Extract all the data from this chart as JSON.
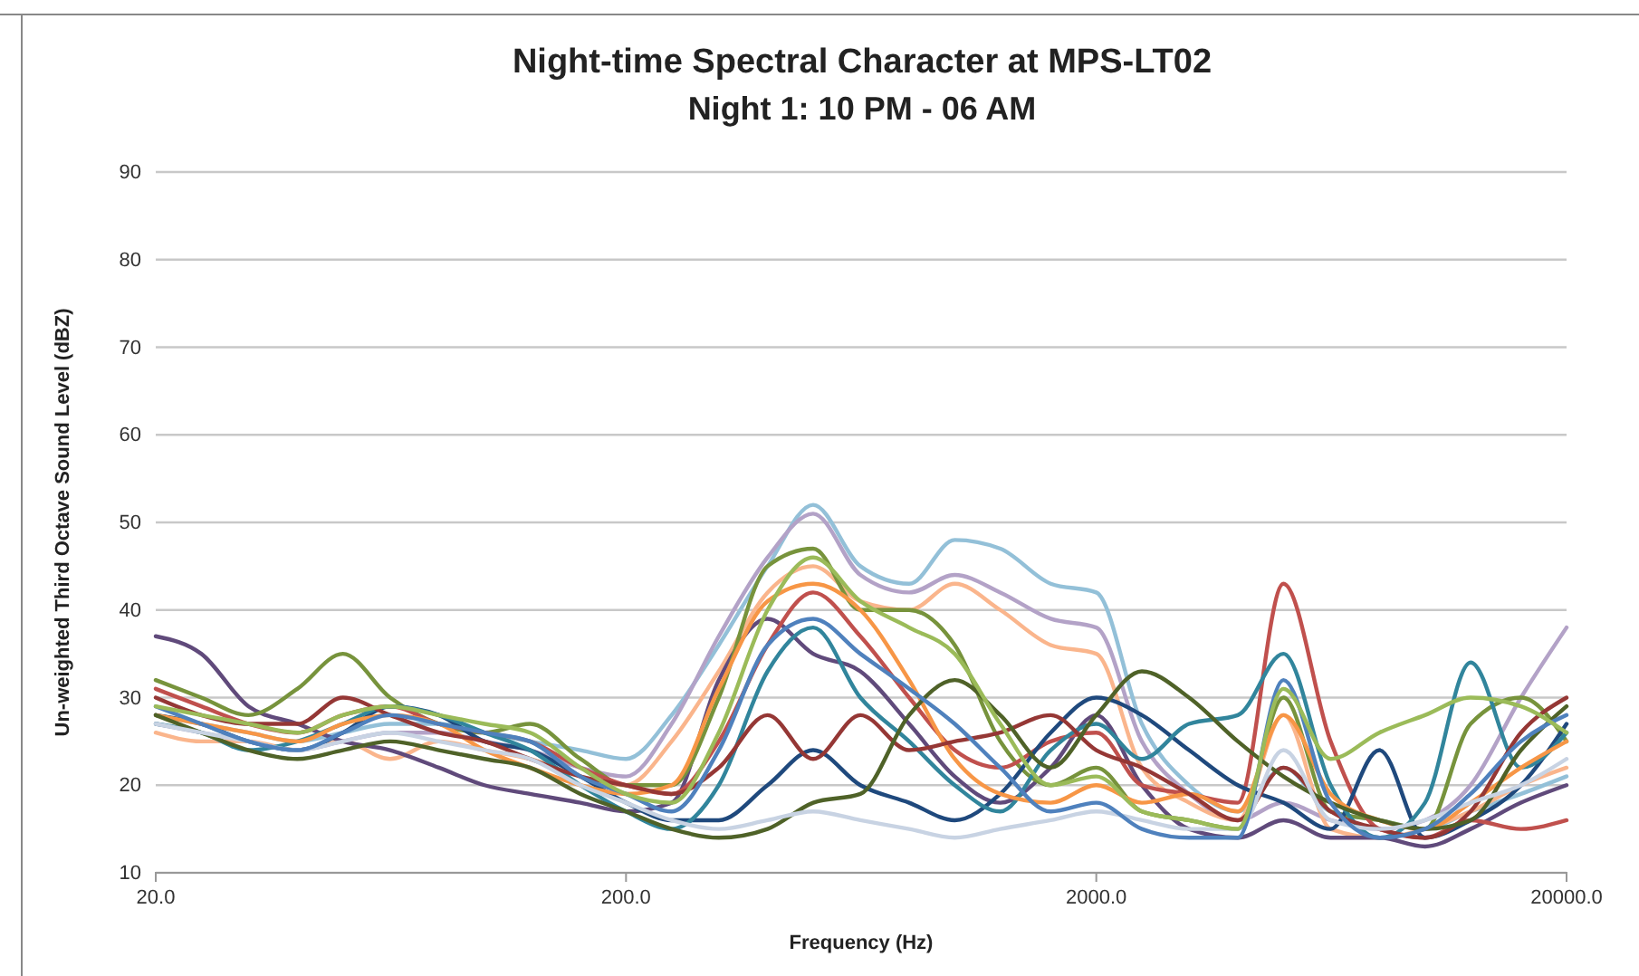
{
  "chart_data": {
    "type": "line",
    "title": "Night-time Spectral Character at MPS-LT02",
    "subtitle": "Night 1: 10 PM - 06 AM",
    "xlabel": "Frequency (Hz)",
    "ylabel": "Un-weighted Third Octave Sound Level (dBZ)",
    "log": "x",
    "grid": "y",
    "marker": "none",
    "line_style": "solid",
    "x": [
      20,
      25,
      31.5,
      40,
      50,
      63,
      80,
      100,
      125,
      160,
      200,
      250,
      315,
      400,
      500,
      630,
      800,
      1000,
      1250,
      1600,
      2000,
      2500,
      3150,
      4000,
      5000,
      6300,
      8000,
      10000,
      12500,
      16000,
      20000
    ],
    "xlim": [
      20,
      20000
    ],
    "xticks": [
      {
        "value": 20,
        "label": "20.0"
      },
      {
        "value": 200,
        "label": "200.0"
      },
      {
        "value": 2000,
        "label": "2000.0"
      },
      {
        "value": 20000,
        "label": "20000.0"
      }
    ],
    "ylim": [
      10,
      90
    ],
    "yticks": [
      10,
      20,
      30,
      40,
      50,
      60,
      70,
      80,
      90
    ],
    "series": [
      {
        "color": "#93c0d8",
        "values": [
          28,
          27,
          26,
          25,
          26,
          27,
          27,
          26,
          25,
          24,
          23,
          28,
          36,
          45,
          52,
          45,
          43,
          48,
          47,
          43,
          42,
          27,
          20,
          17,
          22,
          17,
          16,
          15,
          17,
          19,
          21
        ]
      },
      {
        "color": "#b3a2c7",
        "values": [
          27,
          26,
          25,
          24,
          25,
          26,
          26,
          25,
          24,
          22,
          21,
          27,
          37,
          46,
          51,
          44,
          42,
          44,
          42,
          39,
          38,
          25,
          19,
          16,
          18,
          16,
          15,
          16,
          20,
          30,
          38
        ]
      },
      {
        "color": "#fab58c",
        "values": [
          26,
          25,
          25,
          24,
          25,
          23,
          25,
          24,
          23,
          21,
          20,
          25,
          33,
          42,
          45,
          41,
          40,
          43,
          40,
          36,
          35,
          22,
          18,
          16,
          28,
          15,
          14,
          15,
          17,
          20,
          22
        ]
      },
      {
        "color": "#604a7b",
        "values": [
          37,
          35,
          29,
          27,
          25,
          24,
          22,
          20,
          19,
          18,
          17,
          18,
          32,
          39,
          35,
          33,
          27,
          21,
          18,
          22,
          28,
          20,
          15,
          14,
          16,
          14,
          14,
          13,
          15,
          18,
          20
        ]
      },
      {
        "color": "#77933c",
        "values": [
          32,
          30,
          28,
          31,
          35,
          30,
          27,
          26,
          27,
          23,
          20,
          20,
          30,
          45,
          47,
          40,
          40,
          36,
          25,
          20,
          22,
          17,
          16,
          15,
          30,
          17,
          16,
          15,
          27,
          30,
          25
        ]
      },
      {
        "color": "#c0504d",
        "values": [
          31,
          29,
          27,
          26,
          28,
          29,
          27,
          26,
          25,
          22,
          20,
          19,
          25,
          36,
          42,
          37,
          30,
          24,
          22,
          25,
          26,
          20,
          19,
          18,
          43,
          25,
          15,
          14,
          16,
          15,
          16
        ]
      },
      {
        "color": "#1f497d",
        "values": [
          28,
          27,
          25,
          24,
          26,
          29,
          28,
          25,
          24,
          21,
          18,
          16,
          16,
          20,
          24,
          20,
          18,
          16,
          19,
          26,
          30,
          28,
          24,
          20,
          18,
          15,
          24,
          14,
          16,
          20,
          27
        ]
      },
      {
        "color": "#31859c",
        "values": [
          27,
          26,
          24,
          25,
          27,
          29,
          28,
          26,
          24,
          20,
          17,
          15,
          20,
          33,
          38,
          30,
          25,
          20,
          17,
          24,
          27,
          23,
          27,
          28,
          35,
          20,
          14,
          18,
          34,
          22,
          26
        ]
      },
      {
        "color": "#f79646",
        "values": [
          28,
          27,
          26,
          25,
          27,
          28,
          27,
          24,
          22,
          20,
          19,
          20,
          31,
          41,
          43,
          40,
          32,
          23,
          19,
          18,
          20,
          18,
          19,
          17,
          28,
          19,
          16,
          15,
          18,
          22,
          25
        ]
      },
      {
        "color": "#953735",
        "values": [
          30,
          28,
          27,
          27,
          30,
          28,
          26,
          25,
          23,
          21,
          20,
          19,
          22,
          28,
          23,
          28,
          24,
          25,
          26,
          28,
          24,
          22,
          19,
          16,
          22,
          17,
          15,
          14,
          17,
          26,
          30
        ]
      },
      {
        "color": "#4f6228",
        "values": [
          28,
          26,
          24,
          23,
          24,
          25,
          24,
          23,
          22,
          19,
          17,
          15,
          14,
          15,
          18,
          19,
          28,
          32,
          28,
          22,
          28,
          33,
          30,
          25,
          21,
          18,
          16,
          15,
          16,
          24,
          29
        ]
      },
      {
        "color": "#c8d3e3",
        "values": [
          27,
          26,
          25,
          24,
          25,
          26,
          25,
          24,
          23,
          20,
          18,
          16,
          15,
          16,
          17,
          16,
          15,
          14,
          15,
          16,
          17,
          16,
          15,
          15,
          24,
          16,
          15,
          16,
          18,
          20,
          23
        ]
      },
      {
        "color": "#4f81bd",
        "values": [
          29,
          27,
          25,
          24,
          26,
          28,
          27,
          26,
          25,
          21,
          19,
          17,
          24,
          36,
          39,
          35,
          31,
          27,
          22,
          17,
          18,
          15,
          14,
          14,
          32,
          18,
          14,
          15,
          19,
          25,
          28
        ]
      },
      {
        "color": "#9bbb59",
        "values": [
          29,
          28,
          27,
          26,
          28,
          29,
          28,
          27,
          26,
          22,
          19,
          18,
          26,
          40,
          46,
          41,
          38,
          35,
          27,
          20,
          21,
          17,
          16,
          15,
          31,
          23,
          26,
          28,
          30,
          29,
          26
        ]
      }
    ]
  }
}
